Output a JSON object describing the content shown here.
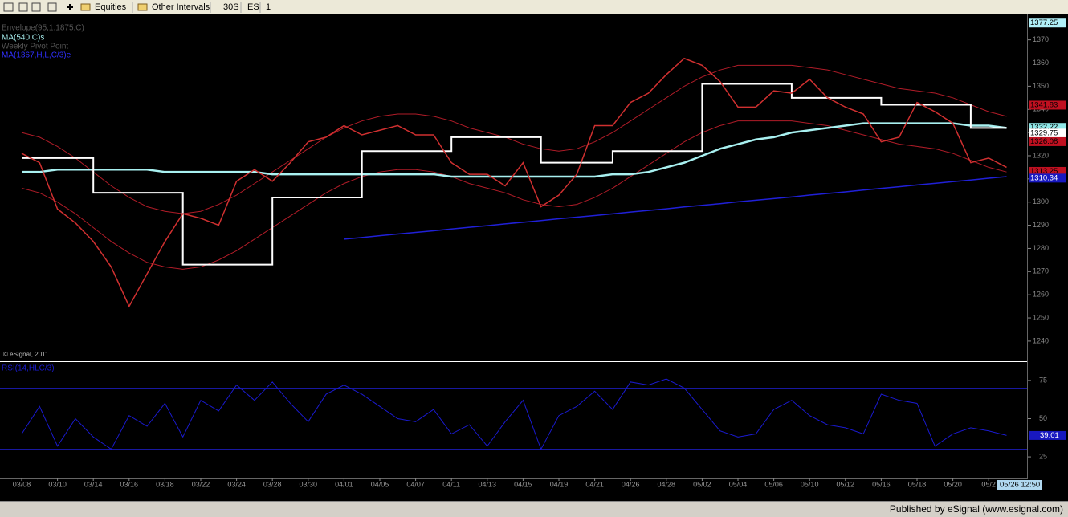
{
  "toolbar": {
    "items": [
      "Equities",
      "Other Intervals",
      "30S",
      "ES",
      "1"
    ]
  },
  "footer": "Published by eSignal (www.esignal.com)",
  "watermark": "© eSignal, 2011",
  "time_tag": "05/26 12:50",
  "chart_data": [
    {
      "type": "line",
      "categories": [
        "03/08",
        null,
        "03/10",
        null,
        "03/14",
        null,
        "03/16",
        null,
        "03/18",
        null,
        "03/22",
        null,
        "03/24",
        null,
        "03/28",
        null,
        "03/30",
        null,
        "04/01",
        null,
        "04/05",
        null,
        "04/07",
        null,
        "04/11",
        null,
        "04/13",
        null,
        "04/15",
        null,
        "04/19",
        null,
        "04/21",
        null,
        "04/26",
        null,
        "04/28",
        null,
        "05/02",
        null,
        "05/04",
        null,
        "05/06",
        null,
        "05/10",
        null,
        "05/12",
        null,
        "05/16",
        null,
        "05/18",
        null,
        "05/20",
        null,
        "05/2",
        null
      ],
      "ylim": [
        1232,
        1377.5
      ],
      "yticks": [
        1240,
        1250,
        1260,
        1270,
        1280,
        1290,
        1300,
        1310,
        1320,
        1330,
        1340,
        1350,
        1360,
        1370
      ],
      "price": {
        "color": "#d03030",
        "values": [
          1321,
          1317,
          1297,
          1291,
          1283,
          1272,
          1255,
          1269,
          1283,
          1295,
          1293,
          1290,
          1309,
          1314,
          1309,
          1317,
          1326,
          1328,
          1333,
          1329,
          1331,
          1333,
          1329,
          1329,
          1317,
          1312,
          1312,
          1307,
          1317,
          1298,
          1303,
          1312,
          1333,
          1333,
          1343,
          1347,
          1355,
          1362,
          1359,
          1352,
          1341,
          1341,
          1348,
          1347,
          1353,
          1345,
          1341,
          1338,
          1326,
          1328,
          1343,
          1339,
          1334,
          1317,
          1319,
          1315
        ]
      },
      "envelope": {
        "name": "Envelope(95,1.1875,C)",
        "color": "#b01c28",
        "label_color": "#555555",
        "upper": [
          1330,
          1328,
          1324,
          1319,
          1313,
          1307,
          1302,
          1298,
          1296,
          1295,
          1296,
          1299,
          1303,
          1308,
          1313,
          1318,
          1323,
          1328,
          1332,
          1335,
          1337,
          1338,
          1338,
          1337,
          1335,
          1332,
          1330,
          1328,
          1325,
          1323,
          1322,
          1323,
          1326,
          1330,
          1335,
          1340,
          1345,
          1350,
          1354,
          1357,
          1359,
          1359,
          1359,
          1359,
          1358,
          1357,
          1355,
          1353,
          1351,
          1349,
          1348,
          1347,
          1345,
          1342,
          1339,
          1337
        ],
        "lower": [
          1306,
          1304,
          1300,
          1295,
          1289,
          1283,
          1278,
          1274,
          1272,
          1271,
          1272,
          1275,
          1279,
          1284,
          1289,
          1294,
          1299,
          1304,
          1308,
          1311,
          1313,
          1314,
          1314,
          1313,
          1311,
          1308,
          1306,
          1304,
          1301,
          1299,
          1298,
          1299,
          1302,
          1306,
          1311,
          1316,
          1321,
          1326,
          1330,
          1333,
          1335,
          1335,
          1335,
          1335,
          1334,
          1333,
          1331,
          1329,
          1327,
          1325,
          1324,
          1323,
          1321,
          1318,
          1315,
          1313
        ]
      },
      "series": [
        {
          "name": "MA(540,C)s",
          "color": "#a8f0f0",
          "label_color": "#a8f0f0",
          "width": 2.5,
          "values": [
            1313,
            1313,
            1314,
            1314,
            1314,
            1314,
            1314,
            1314,
            1313,
            1313,
            1313,
            1313,
            1313,
            1313,
            1312,
            1312,
            1312,
            1312,
            1312,
            1312,
            1312,
            1312,
            1312,
            1312,
            1311,
            1311,
            1311,
            1311,
            1311,
            1311,
            1311,
            1311,
            1311,
            1312,
            1312,
            1313,
            1315,
            1317,
            1320,
            1323,
            1325,
            1327,
            1328,
            1330,
            1331,
            1332,
            1333,
            1334,
            1334,
            1334,
            1334,
            1334,
            1334,
            1333,
            1333,
            1332
          ]
        },
        {
          "name": "Weekly Pivot Point",
          "color": "#ffffff",
          "label_color": "#555555",
          "width": 2,
          "step": true,
          "values": [
            1319,
            1319,
            1319,
            1319,
            1304,
            1304,
            1304,
            1304,
            1304,
            1273,
            1273,
            1273,
            1273,
            1273,
            1302,
            1302,
            1302,
            1302,
            1302,
            1322,
            1322,
            1322,
            1322,
            1322,
            1328,
            1328,
            1328,
            1328,
            1328,
            1317,
            1317,
            1317,
            1317,
            1322,
            1322,
            1322,
            1322,
            1322,
            1351,
            1351,
            1351,
            1351,
            1351,
            1345,
            1345,
            1345,
            1345,
            1345,
            1342,
            1342,
            1342,
            1342,
            1342,
            1332,
            1332,
            1332
          ]
        },
        {
          "name": "MA(1367,H,L,C/3)e",
          "color": "#2020d8",
          "label_color": "#3030ff",
          "width": 1.5,
          "values": [
            null,
            null,
            null,
            null,
            null,
            null,
            null,
            null,
            null,
            null,
            null,
            null,
            null,
            null,
            null,
            null,
            null,
            null,
            1284,
            1284.7,
            1285.5,
            1286.2,
            1286.9,
            1287.6,
            1288.4,
            1289.1,
            1289.8,
            1290.6,
            1291.3,
            1292,
            1292.8,
            1293.5,
            1294.2,
            1294.9,
            1295.7,
            1296.4,
            1297.1,
            1297.9,
            1298.6,
            1299.3,
            1300.1,
            1300.8,
            1301.5,
            1302.2,
            1303,
            1303.7,
            1304.4,
            1305.2,
            1305.9,
            1306.6,
            1307.4,
            1308.1,
            1308.8,
            1309.5,
            1310.3,
            1311
          ]
        }
      ],
      "price_tags": [
        {
          "value": 1377.25,
          "color": "#b0f0f8",
          "text_color": "#000000"
        },
        {
          "value": 1341.83,
          "color": "#c01020",
          "text_color": "#000000"
        },
        {
          "value": 1332.22,
          "color": "#90e8e8",
          "text_color": "#000000"
        },
        {
          "value": 1329.75,
          "color": "#ffffff",
          "text_color": "#000000"
        },
        {
          "value": 1326.08,
          "color": "#c01020",
          "text_color": "#000000"
        },
        {
          "value": 1313.25,
          "color": "#c01020",
          "text_color": "#000000"
        },
        {
          "value": 1310.34,
          "color": "#1818c0",
          "text_color": "#ffffff"
        }
      ]
    },
    {
      "type": "line",
      "title": "RSI(14,HLC/3)",
      "color": "#1a1ad0",
      "ylim": [
        14,
        86
      ],
      "yticks": [
        25,
        50,
        75
      ],
      "bands": [
        70,
        30
      ],
      "values": [
        40,
        58,
        32,
        50,
        38,
        30,
        52,
        45,
        60,
        38,
        62,
        55,
        72,
        62,
        74,
        60,
        48,
        66,
        72,
        66,
        58,
        50,
        48,
        56,
        40,
        46,
        32,
        48,
        62,
        30,
        52,
        58,
        68,
        56,
        74,
        72,
        76,
        70,
        56,
        42,
        38,
        40,
        56,
        62,
        52,
        46,
        44,
        40,
        66,
        62,
        60,
        32,
        40,
        44,
        42,
        39.01
      ]
    }
  ]
}
